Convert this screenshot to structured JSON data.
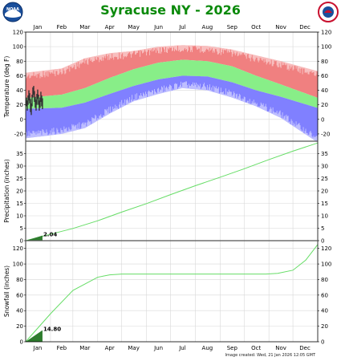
{
  "header": {
    "title": "Syracuse NY - 2026"
  },
  "logos": {
    "left": "noaa-logo",
    "right": "nws-logo",
    "left_text": "NOAA"
  },
  "footer": {
    "created": "Image created: Wed, 21 Jan 2026 12:05 GMT"
  },
  "colors": {
    "record_band": "#f08080",
    "normal_band": "#88ee88",
    "low_band": "#8080ff",
    "observed": "#333333",
    "accum_fill": "#2e7d2e",
    "normal_line": "#66dd66"
  },
  "chart_data": [
    {
      "type": "area",
      "ylabel": "Temperature (deg F)",
      "ylim": [
        -30,
        120
      ],
      "yticks": [
        -20,
        0,
        20,
        40,
        60,
        80,
        100,
        120
      ],
      "months": [
        "Jan",
        "Feb",
        "Mar",
        "Apr",
        "May",
        "Jun",
        "Jul",
        "Aug",
        "Sep",
        "Oct",
        "Nov",
        "Dec"
      ],
      "month_mid_days": [
        15,
        45,
        74,
        105,
        135,
        166,
        196,
        227,
        258,
        288,
        319,
        349
      ],
      "normal_high": [
        31,
        34,
        43,
        57,
        69,
        78,
        82,
        80,
        73,
        60,
        48,
        36
      ],
      "normal_low": [
        15,
        16,
        23,
        35,
        46,
        55,
        60,
        59,
        51,
        40,
        31,
        21
      ],
      "record_high": [
        66,
        70,
        84,
        91,
        94,
        100,
        102,
        101,
        96,
        88,
        80,
        71
      ],
      "record_low": [
        -24,
        -20,
        -12,
        8,
        25,
        35,
        43,
        40,
        30,
        18,
        2,
        -20
      ],
      "observed_days": [
        1,
        2,
        3,
        4,
        5,
        6,
        7,
        8,
        9,
        10,
        11,
        12,
        13,
        14,
        15,
        16,
        17,
        18,
        19,
        20,
        21
      ],
      "observed_high": [
        30,
        26,
        33,
        40,
        36,
        28,
        22,
        34,
        44,
        46,
        39,
        31,
        27,
        35,
        41,
        34,
        26,
        30,
        38,
        33,
        29
      ],
      "observed_low": [
        18,
        12,
        20,
        26,
        22,
        10,
        6,
        18,
        30,
        34,
        24,
        16,
        12,
        20,
        28,
        20,
        12,
        16,
        24,
        18,
        14
      ]
    },
    {
      "type": "line",
      "ylabel": "Precipitation (inches)",
      "ylim": [
        0,
        40
      ],
      "yticks": [
        0,
        5,
        10,
        15,
        20,
        25,
        30,
        35
      ],
      "normal_cumulative_days": [
        0,
        31,
        59,
        90,
        120,
        151,
        181,
        212,
        243,
        273,
        304,
        334,
        365
      ],
      "normal_cumulative": [
        0,
        2.6,
        4.9,
        8.0,
        11.5,
        14.9,
        18.5,
        22.1,
        25.5,
        28.9,
        32.6,
        36.0,
        39.3
      ],
      "observed_total": 2.04,
      "observed_total_label": "2.04",
      "observed_through_day": 21
    },
    {
      "type": "line",
      "ylabel": "Snowfall (inches)",
      "ylim": [
        0,
        130
      ],
      "yticks": [
        0,
        20,
        40,
        60,
        80,
        100,
        120
      ],
      "normal_cumulative_days": [
        0,
        31,
        59,
        90,
        105,
        120,
        150,
        300,
        315,
        334,
        350,
        365
      ],
      "normal_cumulative": [
        0,
        36,
        66,
        83,
        86,
        87,
        87,
        87,
        88,
        92,
        105,
        125
      ],
      "observed_total": 14.8,
      "observed_total_label": "14.80",
      "observed_through_day": 21
    }
  ]
}
